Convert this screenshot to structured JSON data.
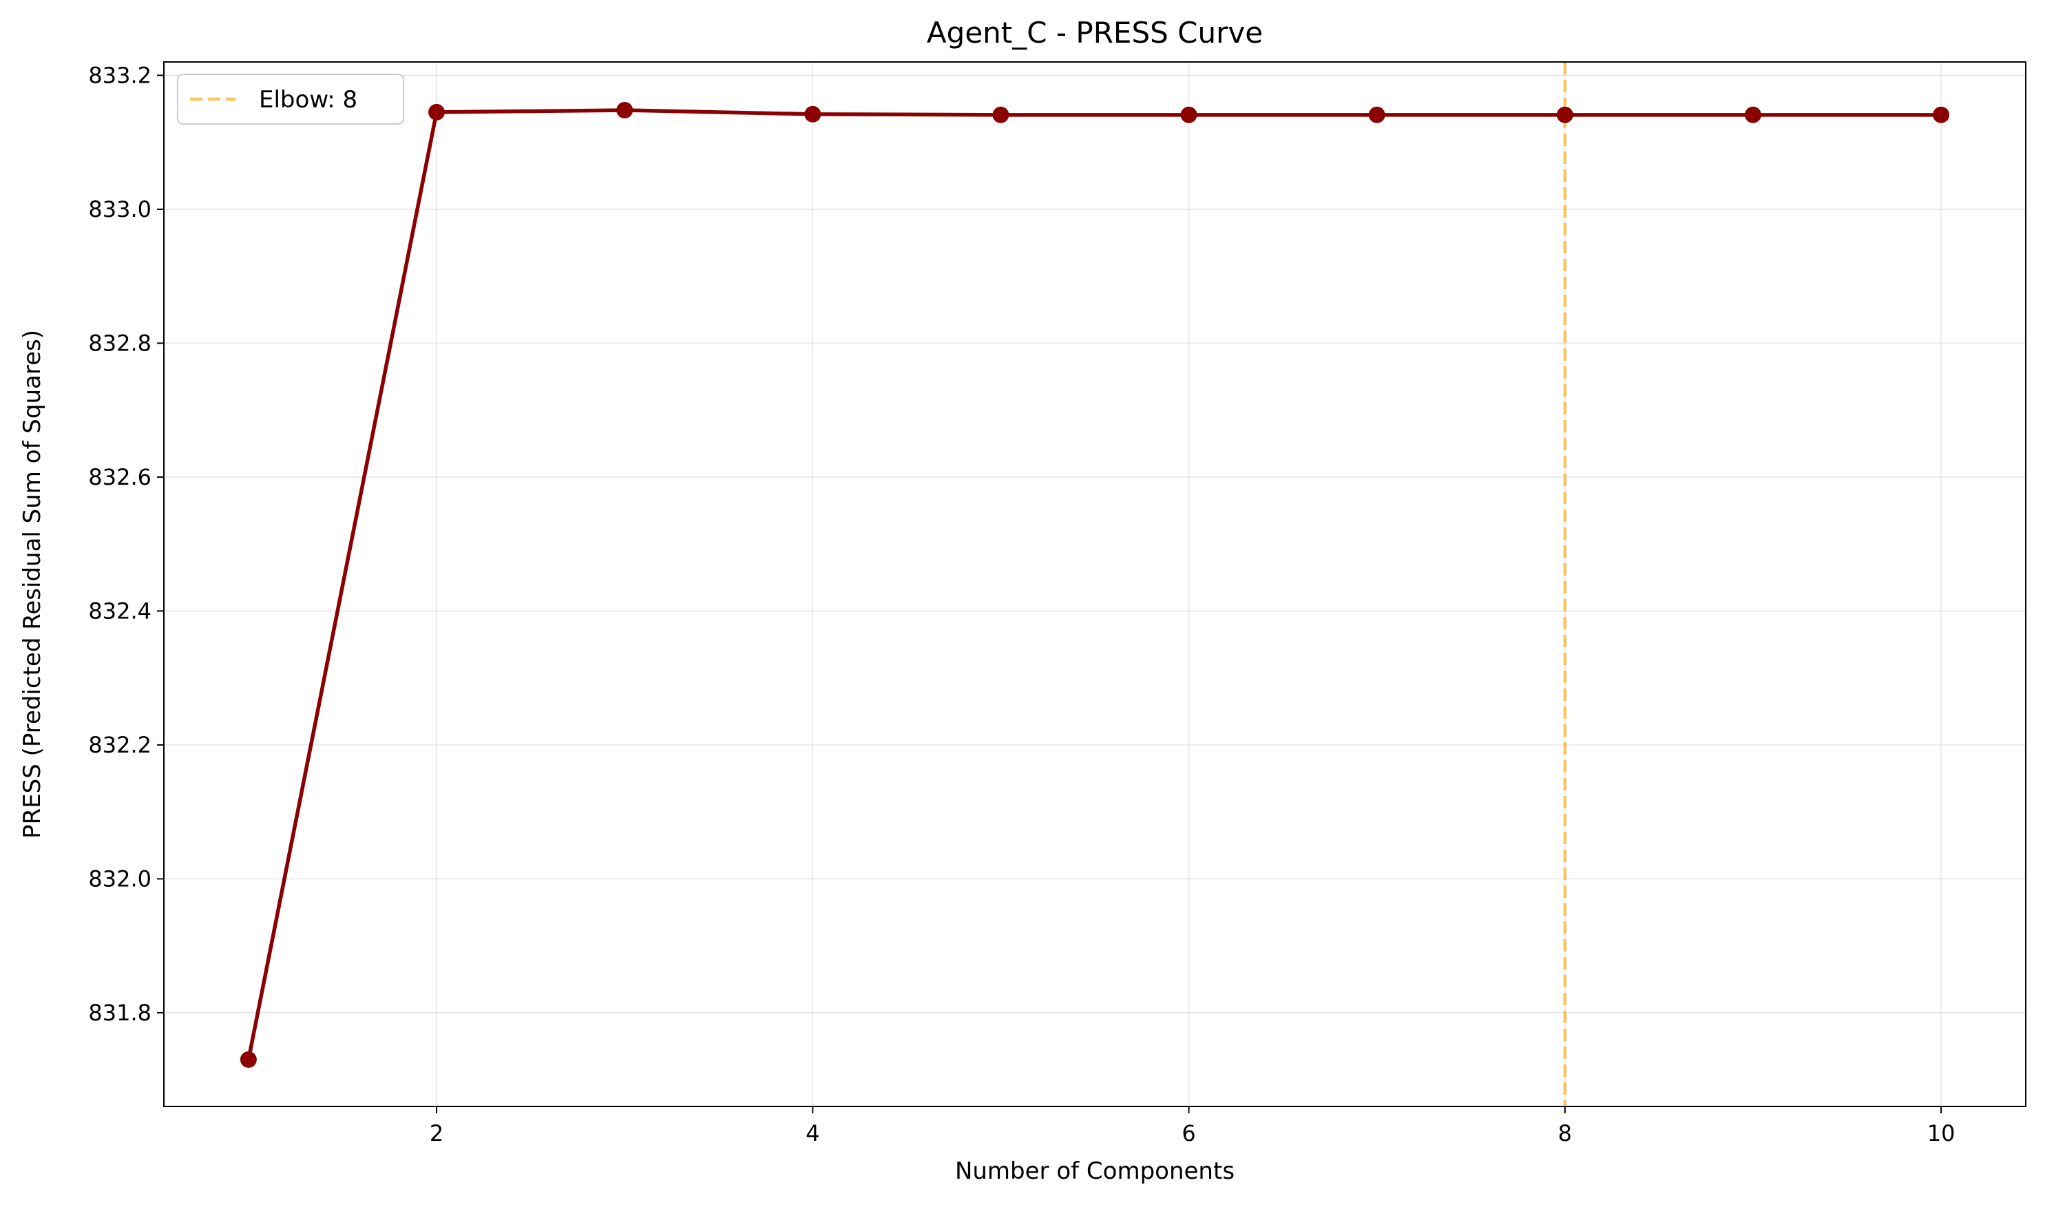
{
  "chart_data": {
    "type": "line",
    "title": "Agent_C - PRESS Curve",
    "xlabel": "Number of Components",
    "ylabel": "PRESS (Predicted Residual Sum of Squares)",
    "xlim": [
      0.55,
      10.45
    ],
    "ylim": [
      831.66,
      833.22
    ],
    "xticks": [
      2,
      4,
      6,
      8,
      10
    ],
    "yticks": [
      831.8,
      832.0,
      832.2,
      832.4,
      832.6,
      832.8,
      833.0,
      833.2
    ],
    "xtick_labels": [
      "2",
      "4",
      "6",
      "8",
      "10"
    ],
    "ytick_labels": [
      "831.8",
      "832.0",
      "832.2",
      "832.4",
      "832.6",
      "832.8",
      "833.0",
      "833.2"
    ],
    "grid": true,
    "series": [
      {
        "color": "#8b0000",
        "marker": "circle",
        "x": [
          1,
          2,
          3,
          4,
          5,
          6,
          7,
          8,
          9,
          10
        ],
        "y": [
          831.73,
          833.145,
          833.148,
          833.142,
          833.141,
          833.141,
          833.141,
          833.141,
          833.141,
          833.141
        ]
      }
    ],
    "vlines": [
      {
        "x": 8,
        "label": "Elbow: 8",
        "color": "#ffb733",
        "style": "dashed"
      }
    ],
    "legend": {
      "placement": "top-left",
      "entries": [
        "Elbow: 8"
      ]
    }
  }
}
